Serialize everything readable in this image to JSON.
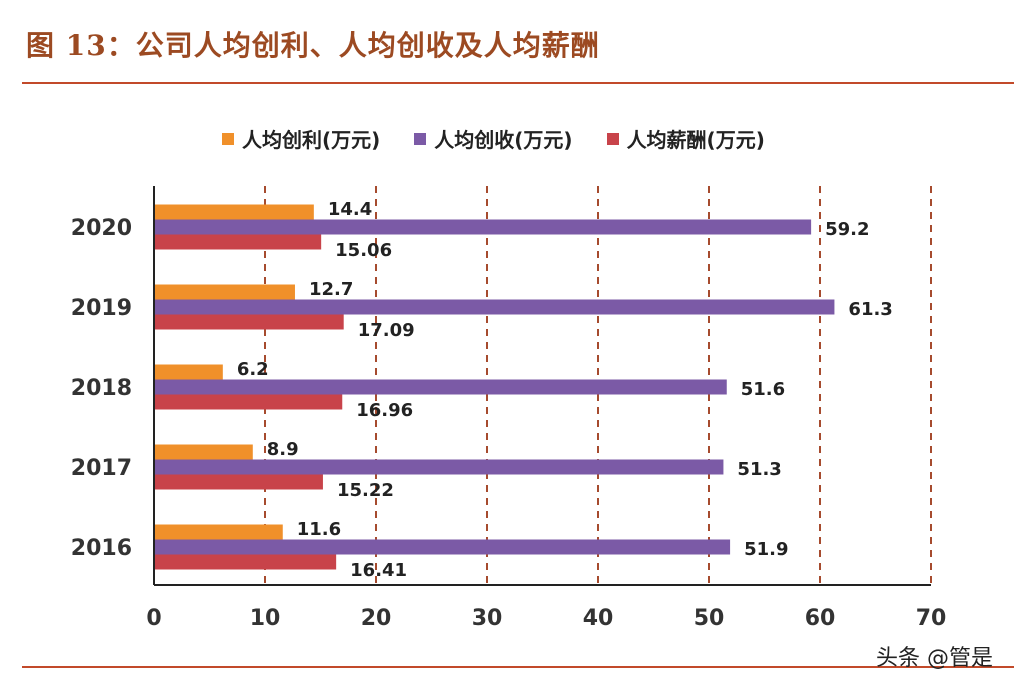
{
  "figure": {
    "title": "图 13：公司人均创利、人均创收及人均薪酬",
    "watermark": "头条 @管是"
  },
  "chart_data": {
    "type": "bar",
    "orientation": "horizontal",
    "title": "图 13：公司人均创利、人均创收及人均薪酬",
    "xlabel": "",
    "ylabel": "",
    "categories": [
      "2020",
      "2019",
      "2018",
      "2017",
      "2016"
    ],
    "series": [
      {
        "name": "人均创利(万元)",
        "color": "#f0902a",
        "values": [
          14.4,
          12.7,
          6.2,
          8.9,
          11.6
        ],
        "labels": [
          "14.4",
          "12.7",
          "6.2",
          "8.9",
          "11.6"
        ]
      },
      {
        "name": "人均创收(万元)",
        "color": "#7b5aa6",
        "values": [
          59.2,
          61.3,
          51.6,
          51.3,
          51.9
        ],
        "labels": [
          "59.2",
          "61.3",
          "51.6",
          "51.3",
          "51.9"
        ]
      },
      {
        "name": "人均薪酬(万元)",
        "color": "#c8434a",
        "values": [
          15.06,
          17.09,
          16.96,
          15.22,
          16.41
        ],
        "labels": [
          "15.06",
          "17.09",
          "16.96",
          "15.22",
          "16.41"
        ]
      }
    ],
    "xlim": [
      0,
      70
    ],
    "xticks": [
      "0",
      "10",
      "20",
      "30",
      "40",
      "50",
      "60",
      "70"
    ],
    "grid": "vertical dashed",
    "legend_position": "top"
  }
}
